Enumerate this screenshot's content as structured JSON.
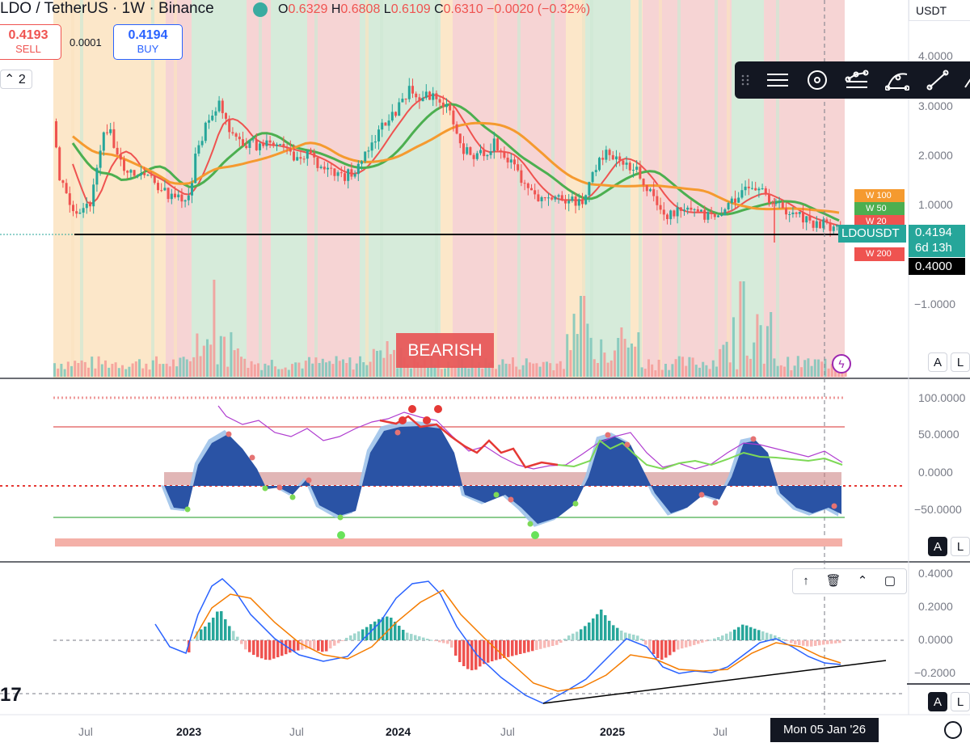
{
  "header": {
    "title": "LDO / TetherUS · 1W · Binance",
    "ohlc": {
      "o_label": "O",
      "o": "0.6329",
      "h_label": "H",
      "h": "0.6808",
      "l_label": "L",
      "l": "0.6109",
      "c_label": "C",
      "c": "0.6310",
      "change": "−0.0020 (−0.32%)"
    }
  },
  "trade": {
    "sell_price": "0.4193",
    "sell_label": "SELL",
    "spread": "0.0001",
    "buy_price": "0.4194",
    "buy_label": "BUY"
  },
  "interval_selector": "2",
  "currency": "USDT",
  "price_axis": {
    "ticks": [
      "4.0000",
      "3.0000",
      "2.0000",
      "1.0000",
      "−1.0000"
    ],
    "symbol_label": "LDOUSDT",
    "last_price": "0.4194",
    "countdown": "6d 13h",
    "support_price": "0.4000",
    "ma_tags": [
      {
        "label": "W 100",
        "color": "#f59a2f"
      },
      {
        "label": "W 50",
        "color": "#4caf50"
      },
      {
        "label": "W 20",
        "color": "#ef5350"
      },
      {
        "label": "W 200",
        "color": "#ef5350"
      }
    ]
  },
  "bearish_label": "BEARISH",
  "osc_axis": {
    "ticks": [
      "100.0000",
      "50.0000",
      "0.0000",
      "−50.0000"
    ]
  },
  "macd_axis": {
    "ticks": [
      "0.4000",
      "0.2000",
      "0.0000",
      "−0.2000"
    ]
  },
  "pane_buttons": {
    "auto": "A",
    "log": "L"
  },
  "pane_controls": {
    "up": "↑",
    "delete": "🗑",
    "collapse": "⌃",
    "maximize": "▢"
  },
  "time_axis": {
    "ticks": [
      {
        "label": "Jul",
        "bold": false
      },
      {
        "label": "2023",
        "bold": true
      },
      {
        "label": "Jul",
        "bold": false
      },
      {
        "label": "2024",
        "bold": true
      },
      {
        "label": "Jul",
        "bold": false
      },
      {
        "label": "2025",
        "bold": true
      },
      {
        "label": "Jul",
        "bold": false
      }
    ],
    "crosshair_date": "Mon 05 Jan '26"
  },
  "drawing_toolbar": {
    "icons": [
      "drag-handle-icon",
      "parallel-lines-icon",
      "magnet-icon",
      "trend-nodes-icon",
      "arc-icon",
      "line-icon",
      "brush-icon"
    ]
  },
  "logo_text": "17",
  "colors": {
    "bull": "#26a69a",
    "bear": "#ef5350",
    "bg_bear": "#f4cccc",
    "bg_bull": "#cfe8d4",
    "bg_neutral": "#fbe3c0",
    "wave_fill": "#2a53a5",
    "wave_light": "#9fc3ea",
    "rsi": "#b03dd0",
    "signal": "#e53935",
    "fast": "#7ed957",
    "macd": "#2962ff",
    "macd_signal": "#f57c00"
  }
}
